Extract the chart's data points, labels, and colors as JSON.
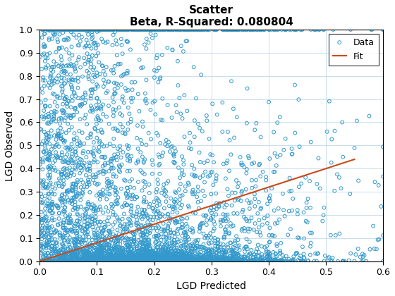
{
  "title_line1": "Scatter",
  "title_line2": "Beta, R-Squared: 0.080804",
  "xlabel": "LGD Predicted",
  "ylabel": "LGD Observed",
  "xlim": [
    0,
    0.6
  ],
  "ylim": [
    0,
    1.0
  ],
  "xticks": [
    0,
    0.1,
    0.2,
    0.3,
    0.4,
    0.5,
    0.6
  ],
  "yticks": [
    0,
    0.1,
    0.2,
    0.3,
    0.4,
    0.5,
    0.6,
    0.7,
    0.8,
    0.9,
    1.0
  ],
  "scatter_edgecolor": "#3399cc",
  "scatter_marker_size": 12,
  "scatter_linewidth": 0.7,
  "fit_color": "#c94a1a",
  "fit_x": [
    0.0,
    0.55
  ],
  "fit_y": [
    0.0,
    0.44
  ],
  "fit_linewidth": 1.5,
  "legend_labels": [
    "Data",
    "Fit"
  ],
  "grid_color": "#c8dff0",
  "grid_linewidth": 0.7,
  "title_fontsize": 11,
  "label_fontsize": 10,
  "tick_fontsize": 9,
  "n_points": 5000,
  "seed": 7,
  "background_color": "#ffffff"
}
